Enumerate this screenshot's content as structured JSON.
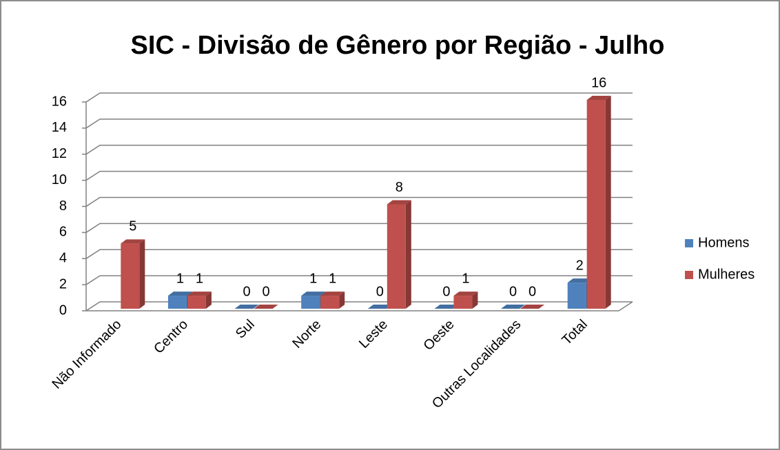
{
  "chart_data": {
    "type": "bar3d",
    "title": "SIC - Divisão de Gênero por Região - Julho",
    "categories": [
      "Não Informado",
      "Centro",
      "Sul",
      "Norte",
      "Leste",
      "Oeste",
      "Outras Localidades",
      "Total"
    ],
    "series": [
      {
        "name": "Homens",
        "color": "#4f81bd",
        "values": [
          null,
          1,
          0,
          1,
          0,
          0,
          0,
          2
        ]
      },
      {
        "name": "Mulheres",
        "color": "#c0504d",
        "values": [
          5,
          1,
          0,
          1,
          8,
          1,
          0,
          16
        ]
      }
    ],
    "ylim": [
      0,
      16
    ],
    "yticks": [
      0,
      2,
      4,
      6,
      8,
      10,
      12,
      14,
      16
    ],
    "grid": true,
    "legend": "right"
  }
}
